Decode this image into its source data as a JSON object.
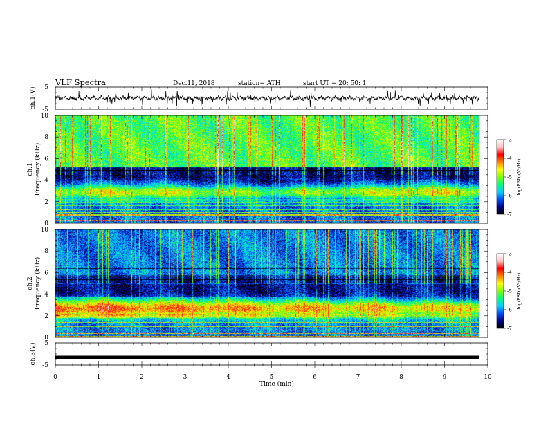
{
  "header": {
    "title": "VLF  Spectra",
    "date": "Dec.11, 2018",
    "station": "station= ATH",
    "start": "start  UT  =    20: 50: 1"
  },
  "chart_data": {
    "type": "heatmap",
    "xlabel": "Time  (min)",
    "xlim": [
      0,
      10
    ],
    "xticks": [
      "0",
      "1",
      "2",
      "3",
      "4",
      "5",
      "6",
      "7",
      "8",
      "9",
      "10"
    ],
    "ch1_wave": {
      "ylabel": "ch.1(V)",
      "yticks": [
        "5",
        "-5"
      ],
      "ylim": [
        -5,
        5
      ],
      "mean": 0
    },
    "ch1_spec": {
      "ylabel": "ch.1 Frequency (kHz)",
      "ylim": [
        0,
        10
      ],
      "yticks": [
        "0",
        "2",
        "4",
        "6",
        "8",
        "10"
      ]
    },
    "ch2_spec": {
      "ylabel": "ch.2 Frequency (kHz)",
      "ylim": [
        0,
        10
      ],
      "yticks": [
        "0",
        "2",
        "4",
        "6",
        "8",
        "10"
      ]
    },
    "ch3_wave": {
      "ylabel": "ch.3(V)",
      "yticks": [
        "5",
        "-5"
      ],
      "ylim": [
        -5,
        5
      ],
      "mean": -1.5
    },
    "colorbar": {
      "label": "log(PSD)(V²/Hz)",
      "ticks": [
        "-3",
        "-4",
        "-5",
        "-6",
        "-7"
      ],
      "range": [
        -7,
        -3
      ],
      "colors": [
        "#000000",
        "#00008b",
        "#0050ff",
        "#00d0ff",
        "#00ff7f",
        "#7fff00",
        "#ffff00",
        "#ff7f00",
        "#ff0000",
        "#ffc0c0",
        "#ffffff"
      ]
    }
  }
}
